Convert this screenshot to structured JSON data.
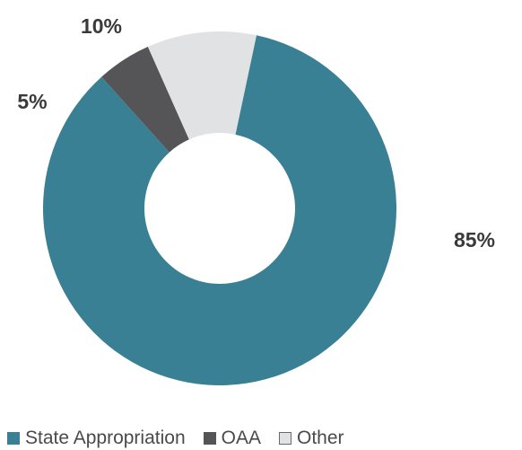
{
  "chart_data": {
    "type": "pie",
    "donut": true,
    "title": "",
    "categories": [
      "State Appropriation",
      "OAA",
      "Other"
    ],
    "values": [
      85,
      5,
      10
    ],
    "value_labels": [
      "85%",
      "5%",
      "10%"
    ],
    "colors": [
      "#3a8094",
      "#555557",
      "#e1e2e4"
    ],
    "start_category": "State Appropriation",
    "direction": "clockwise",
    "legend_position": "bottom"
  }
}
